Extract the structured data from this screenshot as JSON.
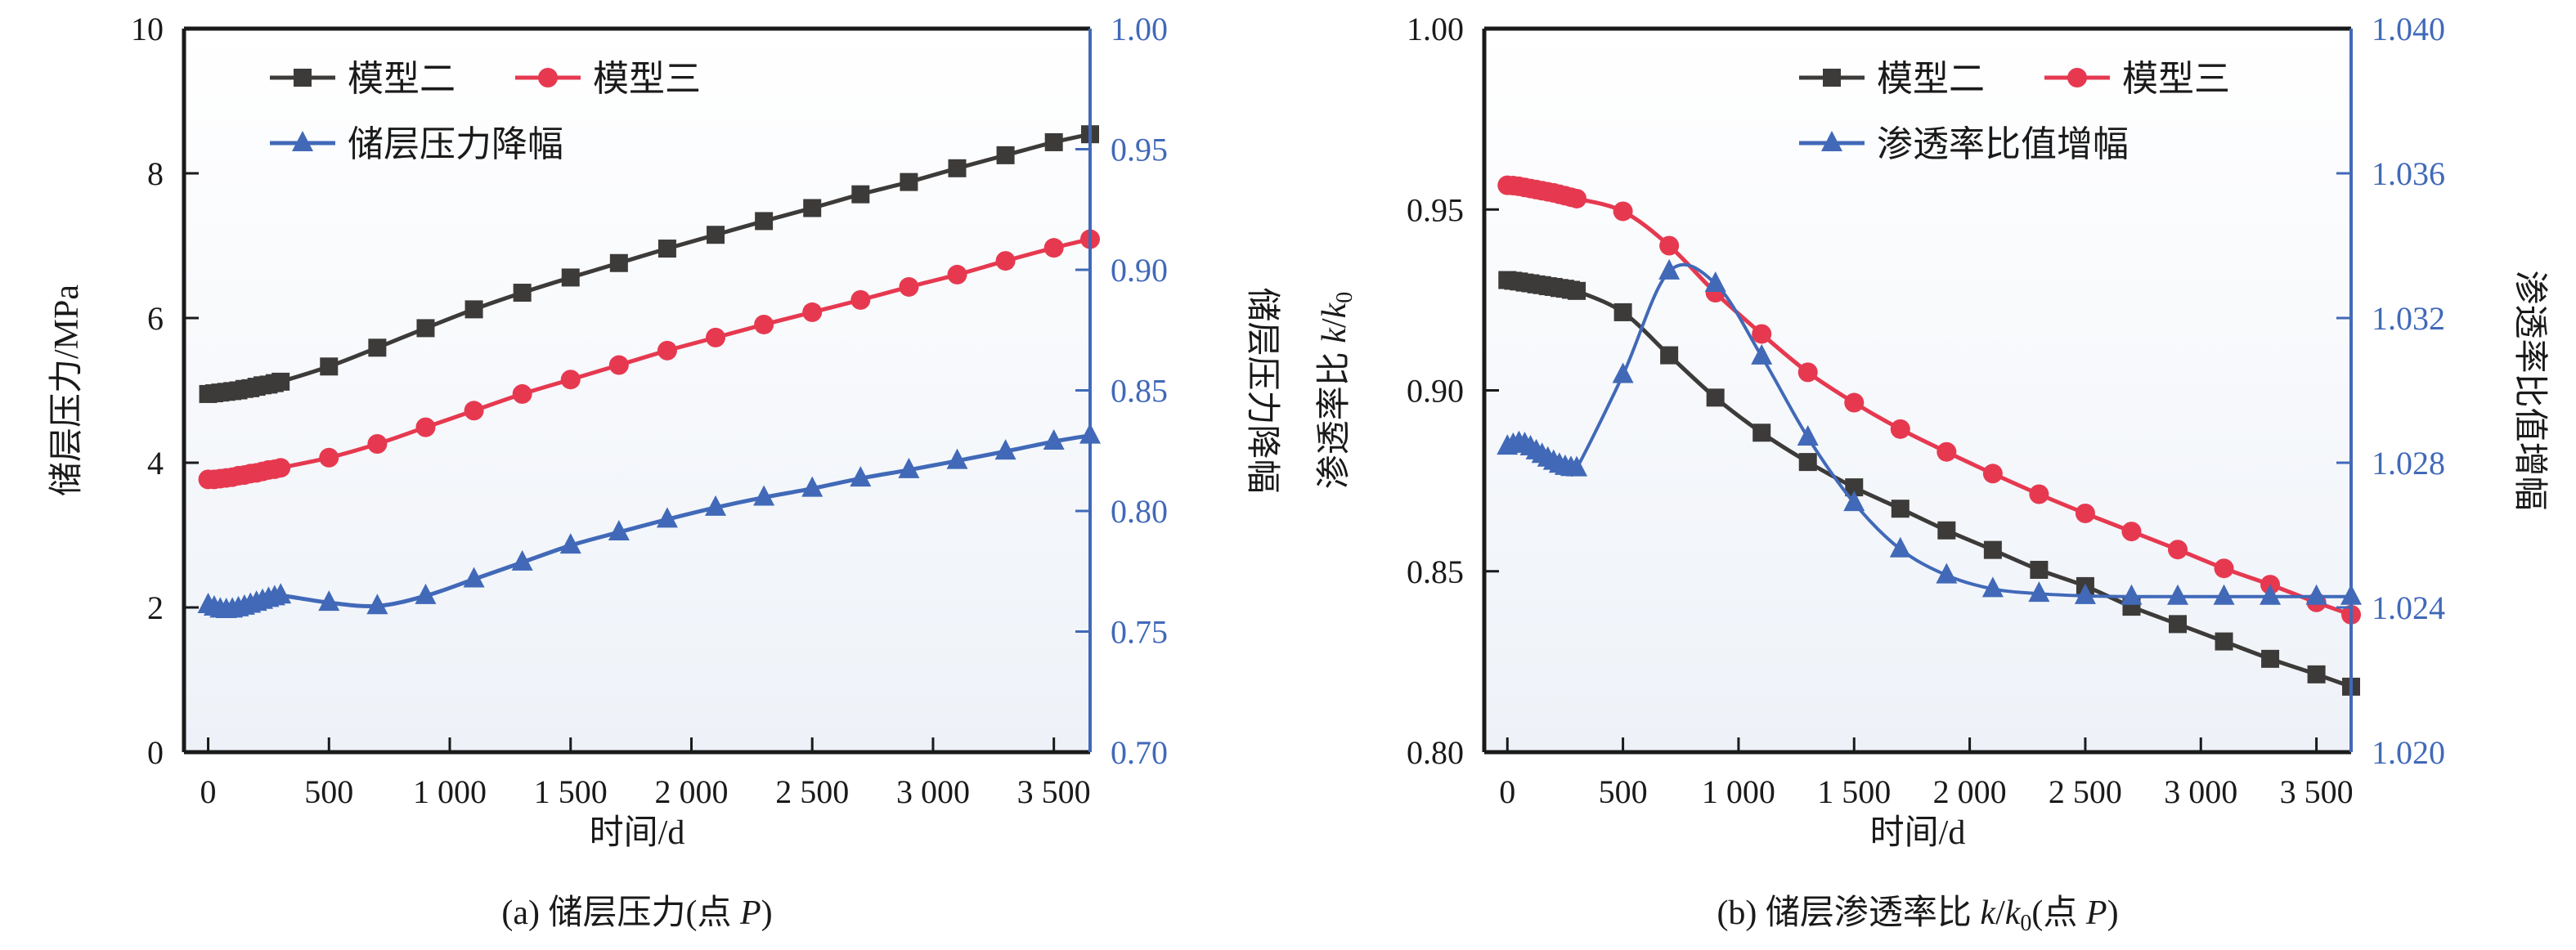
{
  "colors": {
    "model2": "#3d3b39",
    "model3": "#e63950",
    "blue": "#4169b8",
    "axis": "#1a1a1a",
    "bg_top": "#ffffff",
    "bg_bottom": "#eef2f8"
  },
  "chart_data": [
    {
      "id": "a",
      "type": "line",
      "caption": "(a) 储层压力(点 P)",
      "caption_parts": {
        "prefix": "(a) 储层压力(点 ",
        "italic": "P",
        "suffix": ")"
      },
      "xlabel": "时间/d",
      "ylabel": "储层压力/MPa",
      "ylabel_right": "储层压力降幅",
      "xlim": [
        -100,
        3650
      ],
      "ylim": [
        0,
        10
      ],
      "ylim_right": [
        0.7,
        1.0
      ],
      "xticks": [
        0,
        500,
        1000,
        1500,
        2000,
        2500,
        3000,
        3500
      ],
      "xtick_labels": [
        "0",
        "500",
        "1 000",
        "1 500",
        "2 000",
        "2 500",
        "3 000",
        "3 500"
      ],
      "yticks": [
        0,
        2,
        4,
        6,
        8,
        10
      ],
      "ytick_labels": [
        "0",
        "2",
        "4",
        "6",
        "8",
        "10"
      ],
      "yticks_right": [
        0.7,
        0.75,
        0.8,
        0.85,
        0.9,
        0.95,
        1.0
      ],
      "ytick_labels_right": [
        "0.70",
        "0.75",
        "0.80",
        "0.85",
        "0.90",
        "0.95",
        "1.00"
      ],
      "grid": false,
      "legend_position": "top-left",
      "legend": [
        "模型二",
        "模型三",
        "储层压力降幅"
      ],
      "series": [
        {
          "name": "模型二",
          "axis": "left",
          "marker": "square",
          "color_key": "model2",
          "x": [
            0,
            25,
            50,
            75,
            100,
            125,
            150,
            175,
            200,
            225,
            250,
            275,
            300,
            500,
            700,
            900,
            1100,
            1300,
            1500,
            1700,
            1900,
            2100,
            2300,
            2500,
            2700,
            2900,
            3100,
            3300,
            3500,
            3650
          ],
          "y": [
            4.95,
            4.96,
            4.97,
            4.98,
            4.99,
            5.0,
            5.02,
            5.03,
            5.05,
            5.07,
            5.08,
            5.1,
            5.12,
            5.33,
            5.59,
            5.86,
            6.12,
            6.35,
            6.56,
            6.76,
            6.96,
            7.15,
            7.34,
            7.52,
            7.71,
            7.88,
            8.07,
            8.25,
            8.43,
            8.54
          ]
        },
        {
          "name": "模型三",
          "axis": "left",
          "marker": "circle",
          "color_key": "model3",
          "x": [
            0,
            25,
            50,
            75,
            100,
            125,
            150,
            175,
            200,
            225,
            250,
            275,
            300,
            500,
            700,
            900,
            1100,
            1300,
            1500,
            1700,
            1900,
            2100,
            2300,
            2500,
            2700,
            2900,
            3100,
            3300,
            3500,
            3650
          ],
          "y": [
            3.77,
            3.77,
            3.78,
            3.79,
            3.8,
            3.82,
            3.83,
            3.85,
            3.86,
            3.88,
            3.9,
            3.91,
            3.93,
            4.07,
            4.26,
            4.49,
            4.72,
            4.95,
            5.15,
            5.35,
            5.55,
            5.73,
            5.91,
            6.08,
            6.25,
            6.43,
            6.6,
            6.79,
            6.97,
            7.09
          ]
        },
        {
          "name": "储层压力降幅",
          "axis": "right",
          "marker": "triangle",
          "color_key": "blue",
          "x": [
            0,
            25,
            50,
            75,
            100,
            125,
            150,
            175,
            200,
            225,
            250,
            275,
            300,
            500,
            700,
            900,
            1100,
            1300,
            1500,
            1700,
            1900,
            2100,
            2300,
            2500,
            2700,
            2900,
            3100,
            3300,
            3500,
            3650
          ],
          "y": [
            0.761,
            0.76,
            0.7592,
            0.759,
            0.7592,
            0.7597,
            0.7604,
            0.7612,
            0.762,
            0.7628,
            0.7636,
            0.7643,
            0.765,
            0.762,
            0.7606,
            0.7648,
            0.7717,
            0.7787,
            0.7857,
            0.7912,
            0.7965,
            0.8014,
            0.8056,
            0.8093,
            0.8135,
            0.817,
            0.8208,
            0.8247,
            0.8288,
            0.8313
          ]
        }
      ]
    },
    {
      "id": "b",
      "type": "line",
      "caption": "(b) 储层渗透率比 k/k0(点 P)",
      "caption_parts": {
        "prefix": "(b) 储层渗透率比 ",
        "italic": "k",
        "slash": "/",
        "italic2": "k",
        "sub": "0",
        "mid": "(点 ",
        "italic3": "P",
        "suffix": ")"
      },
      "xlabel": "时间/d",
      "ylabel": "渗透率比 k/k0",
      "ylabel_parts": {
        "text": "渗透率比 ",
        "italic": "k",
        "slash": "/",
        "italic2": "k",
        "sub": "0"
      },
      "ylabel_right": "渗透率比值增幅",
      "xlim": [
        -100,
        3650
      ],
      "ylim": [
        0.8,
        1.0
      ],
      "ylim_right": [
        1.02,
        1.04
      ],
      "xticks": [
        0,
        500,
        1000,
        1500,
        2000,
        2500,
        3000,
        3500
      ],
      "xtick_labels": [
        "0",
        "500",
        "1 000",
        "1 500",
        "2 000",
        "2 500",
        "3 000",
        "3 500"
      ],
      "yticks": [
        0.8,
        0.85,
        0.9,
        0.95,
        1.0
      ],
      "ytick_labels": [
        "0.80",
        "0.85",
        "0.90",
        "0.95",
        "1.00"
      ],
      "yticks_right": [
        1.02,
        1.024,
        1.028,
        1.032,
        1.036,
        1.04
      ],
      "ytick_labels_right": [
        "1.020",
        "1.024",
        "1.028",
        "1.032",
        "1.036",
        "1.040"
      ],
      "grid": false,
      "legend_position": "top-right",
      "legend": [
        "模型二",
        "模型三",
        "渗透率比值增幅"
      ],
      "series": [
        {
          "name": "模型二",
          "axis": "left",
          "marker": "square",
          "color_key": "model2",
          "x": [
            0,
            25,
            50,
            75,
            100,
            125,
            150,
            175,
            200,
            225,
            250,
            275,
            300,
            500,
            700,
            900,
            1100,
            1300,
            1500,
            1700,
            1900,
            2100,
            2300,
            2500,
            2700,
            2900,
            3100,
            3300,
            3500,
            3650
          ],
          "y": [
            0.9305,
            0.9303,
            0.9301,
            0.9298,
            0.9296,
            0.9293,
            0.9291,
            0.9288,
            0.9286,
            0.9283,
            0.9281,
            0.9278,
            0.9275,
            0.9216,
            0.9097,
            0.898,
            0.8883,
            0.8802,
            0.8732,
            0.8673,
            0.8613,
            0.8559,
            0.8504,
            0.8459,
            0.8402,
            0.8354,
            0.8306,
            0.8258,
            0.8215,
            0.8181
          ]
        },
        {
          "name": "模型三",
          "axis": "left",
          "marker": "circle",
          "color_key": "model3",
          "x": [
            0,
            25,
            50,
            75,
            100,
            125,
            150,
            175,
            200,
            225,
            250,
            275,
            300,
            500,
            700,
            900,
            1100,
            1300,
            1500,
            1700,
            1900,
            2100,
            2300,
            2500,
            2700,
            2900,
            3100,
            3300,
            3500,
            3650
          ],
          "y": [
            0.9567,
            0.9566,
            0.9564,
            0.9561,
            0.9558,
            0.9555,
            0.9552,
            0.9549,
            0.9546,
            0.9542,
            0.9538,
            0.9534,
            0.953,
            0.9495,
            0.94,
            0.927,
            0.9156,
            0.905,
            0.8966,
            0.8893,
            0.883,
            0.877,
            0.8713,
            0.866,
            0.861,
            0.856,
            0.8508,
            0.8463,
            0.8414,
            0.838
          ]
        },
        {
          "name": "渗透率比值增幅",
          "axis": "right",
          "marker": "triangle",
          "color_key": "blue",
          "x": [
            0,
            25,
            50,
            75,
            100,
            125,
            150,
            175,
            200,
            225,
            250,
            275,
            300,
            500,
            700,
            900,
            1100,
            1300,
            1500,
            1700,
            1900,
            2100,
            2300,
            2500,
            2700,
            2900,
            3100,
            3300,
            3500,
            3650
          ],
          "y": [
            1.02845,
            1.0285,
            1.02855,
            1.02852,
            1.02843,
            1.02832,
            1.02822,
            1.02812,
            1.02803,
            1.02795,
            1.02789,
            1.02786,
            1.02785,
            1.03043,
            1.03329,
            1.03295,
            1.03094,
            1.0287,
            1.02689,
            1.02561,
            1.02489,
            1.02451,
            1.02438,
            1.02432,
            1.0243,
            1.0243,
            1.0243,
            1.0243,
            1.0243,
            1.0243
          ]
        }
      ]
    }
  ]
}
